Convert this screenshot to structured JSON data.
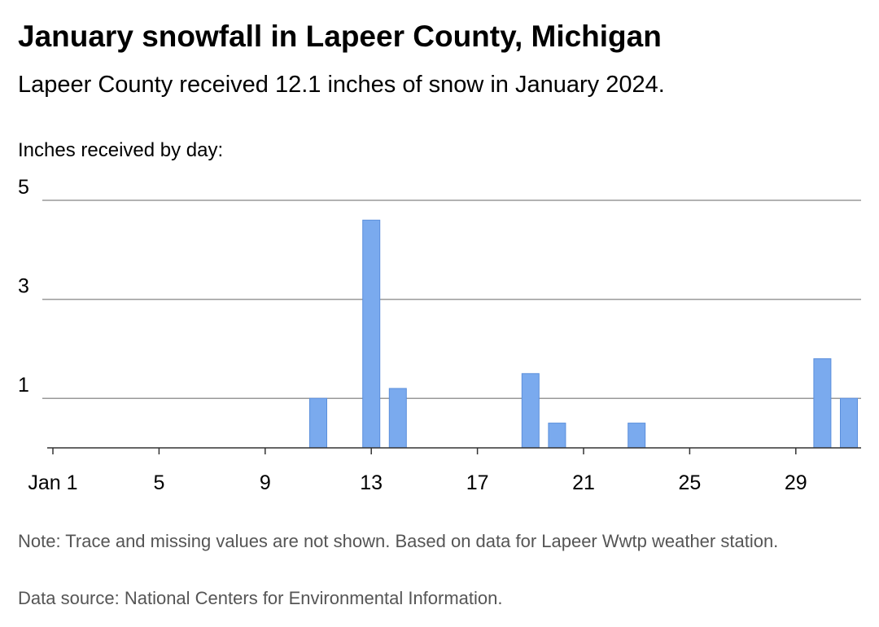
{
  "header": {
    "title": "January snowfall in Lapeer County, Michigan",
    "subtitle": "Lapeer County received 12.1 inches of snow in January 2024."
  },
  "footer": {
    "note": "Note: Trace and missing values are not shown. Based on data for Lapeer Wwtp weather station.",
    "source": "Data source: National Centers for Environmental Information."
  },
  "colors": {
    "bar": "#7aaaee",
    "bar_stroke": "#5b8fdc",
    "grid": "#999999",
    "axis": "#333333"
  },
  "chart_data": {
    "type": "bar",
    "ylabel": "Inches received by day:",
    "xlim": [
      1,
      31
    ],
    "ylim": [
      0,
      5
    ],
    "y_ticks": [
      1,
      3,
      5
    ],
    "x_ticks": [
      {
        "day": 1,
        "label": "Jan 1"
      },
      {
        "day": 5,
        "label": "5"
      },
      {
        "day": 9,
        "label": "9"
      },
      {
        "day": 13,
        "label": "13"
      },
      {
        "day": 17,
        "label": "17"
      },
      {
        "day": 21,
        "label": "21"
      },
      {
        "day": 25,
        "label": "25"
      },
      {
        "day": 29,
        "label": "29"
      }
    ],
    "grid": true,
    "bars": [
      {
        "day": 11,
        "value": 1.0
      },
      {
        "day": 13,
        "value": 4.6
      },
      {
        "day": 14,
        "value": 1.2
      },
      {
        "day": 19,
        "value": 1.5
      },
      {
        "day": 20,
        "value": 0.5
      },
      {
        "day": 23,
        "value": 0.5
      },
      {
        "day": 30,
        "value": 1.8
      },
      {
        "day": 31,
        "value": 1.0
      }
    ]
  }
}
